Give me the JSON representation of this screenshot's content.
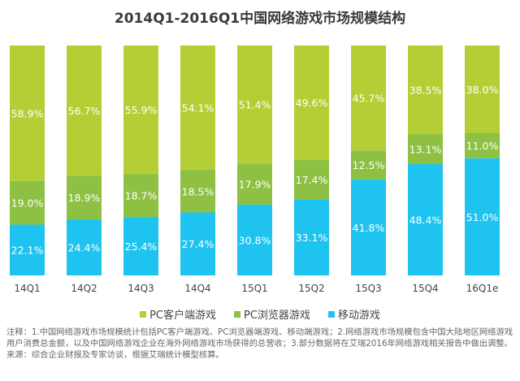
{
  "chart_data": {
    "type": "bar",
    "stacked": true,
    "title": "2014Q1-2016Q1中国网络游戏市场规模结构",
    "categories": [
      "14Q1",
      "14Q2",
      "14Q3",
      "14Q4",
      "15Q1",
      "15Q2",
      "15Q3",
      "15Q4",
      "16Q1e"
    ],
    "series": [
      {
        "name": "移动游戏",
        "color": "#1fc3ef",
        "values": [
          22.1,
          24.4,
          25.4,
          27.4,
          30.8,
          33.1,
          41.8,
          48.4,
          51.0
        ]
      },
      {
        "name": "PC浏览器游戏",
        "color": "#8dc043",
        "values": [
          19.0,
          18.9,
          18.7,
          18.5,
          17.9,
          17.4,
          12.5,
          13.1,
          11.0
        ]
      },
      {
        "name": "PC客户端游戏",
        "color": "#b3cf35",
        "values": [
          58.9,
          56.7,
          55.9,
          54.1,
          51.4,
          49.6,
          45.7,
          38.5,
          38.0
        ]
      }
    ],
    "legend_order": [
      "PC客户端游戏",
      "PC浏览器游戏",
      "移动游戏"
    ],
    "unit": "%",
    "ylim": [
      0,
      100
    ],
    "grid": false,
    "legend_position": "bottom"
  },
  "notes": {
    "note": "注释：1.中国网络游戏市场规模统计包括PC客户端游戏、PC浏览器端游戏、移动端游戏；2.网络游戏市场规模包含中国大陆地区网络游戏用户消费总金额，以及中国网络游戏企业在海外网络游戏市场获得的总营收；3.部分数据将在艾瑞2016年网络游戏相关报告中做出调整。",
    "source": "来源：综合企业财报及专家访谈，根据艾瑞统计模型核算。"
  }
}
